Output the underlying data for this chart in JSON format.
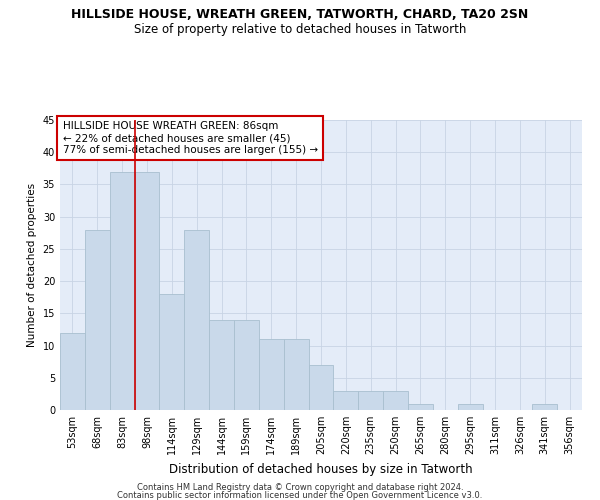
{
  "title": "HILLSIDE HOUSE, WREATH GREEN, TATWORTH, CHARD, TA20 2SN",
  "subtitle": "Size of property relative to detached houses in Tatworth",
  "xlabel": "Distribution of detached houses by size in Tatworth",
  "ylabel": "Number of detached properties",
  "categories": [
    "53sqm",
    "68sqm",
    "83sqm",
    "98sqm",
    "114sqm",
    "129sqm",
    "144sqm",
    "159sqm",
    "174sqm",
    "189sqm",
    "205sqm",
    "220sqm",
    "235sqm",
    "250sqm",
    "265sqm",
    "280sqm",
    "295sqm",
    "311sqm",
    "326sqm",
    "341sqm",
    "356sqm"
  ],
  "values": [
    12,
    28,
    37,
    37,
    18,
    28,
    14,
    14,
    11,
    11,
    7,
    3,
    3,
    3,
    1,
    0,
    1,
    0,
    0,
    1,
    0
  ],
  "bar_color": "#c9d9ea",
  "bar_edge_color": "#a8bfcf",
  "vline_color": "#cc0000",
  "vline_index": 2.5,
  "annotation_text": "HILLSIDE HOUSE WREATH GREEN: 86sqm\n← 22% of detached houses are smaller (45)\n77% of semi-detached houses are larger (155) →",
  "annotation_box_color": "#ffffff",
  "annotation_box_edge": "#cc0000",
  "ylim": [
    0,
    45
  ],
  "yticks": [
    0,
    5,
    10,
    15,
    20,
    25,
    30,
    35,
    40,
    45
  ],
  "grid_color": "#c8d4e4",
  "background_color": "#e4ecf8",
  "footer_line1": "Contains HM Land Registry data © Crown copyright and database right 2024.",
  "footer_line2": "Contains public sector information licensed under the Open Government Licence v3.0.",
  "title_fontsize": 9,
  "subtitle_fontsize": 8.5,
  "xlabel_fontsize": 8.5,
  "ylabel_fontsize": 7.5,
  "tick_fontsize": 7,
  "annot_fontsize": 7.5,
  "footer_fontsize": 6
}
